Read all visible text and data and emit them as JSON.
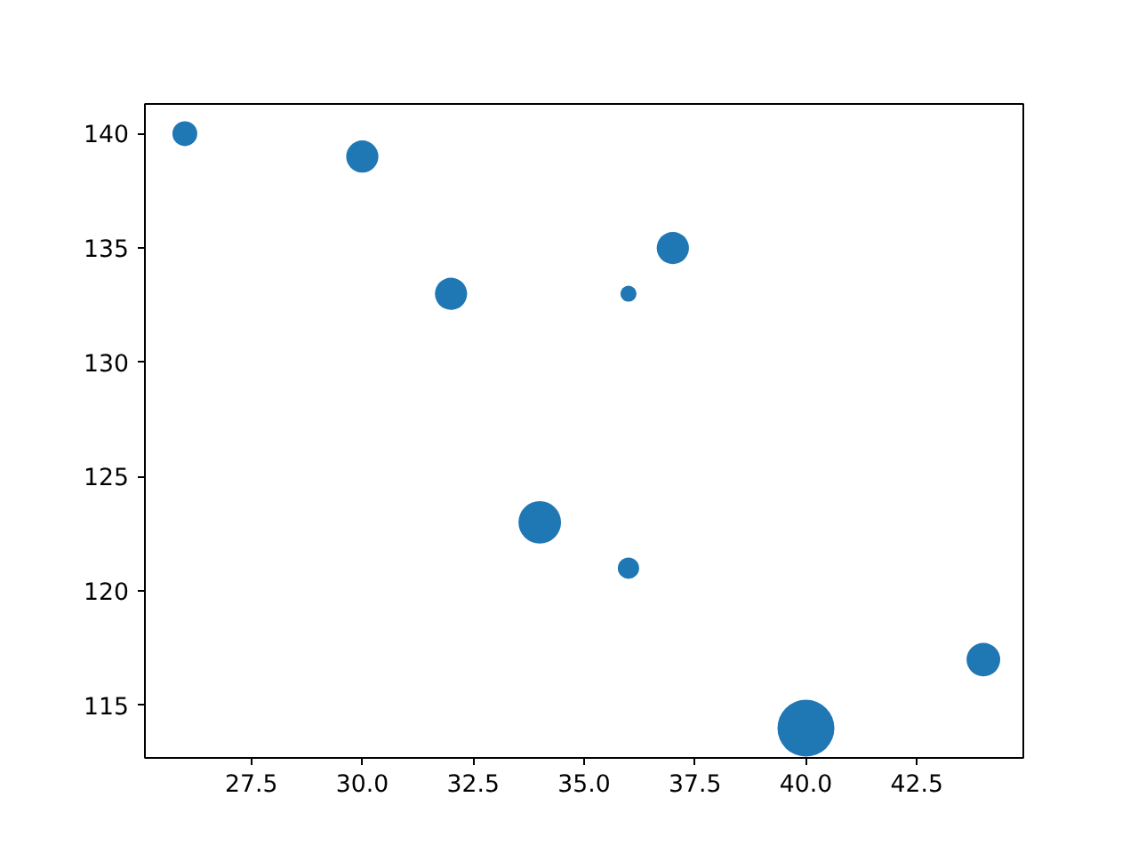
{
  "chart_data": {
    "type": "bubble",
    "x": [
      26,
      30,
      32,
      36,
      37,
      34,
      36,
      40,
      44
    ],
    "series": [
      {
        "color": "#1f77b4",
        "values": [
          140,
          139,
          133,
          133,
          135,
          123,
          121,
          114,
          117
        ],
        "sizes": [
          0.19,
          0.32,
          0.32,
          0.08,
          0.32,
          0.56,
          0.14,
          1,
          0.35
        ]
      }
    ],
    "xlim": [
      25.1,
      44.9
    ],
    "ylim": [
      112.7,
      141.3
    ],
    "xticks": [
      27.5,
      {
        "value": 30,
        "label": "30.0"
      },
      32.5,
      {
        "value": 35,
        "label": "35.0"
      },
      37.5,
      {
        "value": 40,
        "label": "40.0"
      },
      42.5
    ],
    "yticks": [
      115,
      120,
      125,
      130,
      135,
      140
    ],
    "grid": false
  }
}
